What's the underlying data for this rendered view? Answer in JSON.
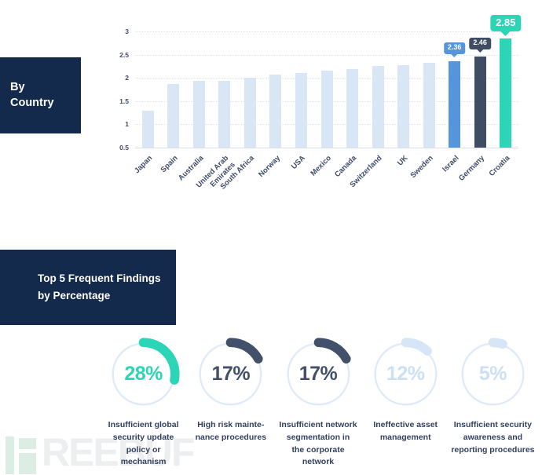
{
  "colors": {
    "dark_navy": "#132A4D",
    "teal": "#2BD5B5",
    "blue": "#5495DB",
    "slate": "#3E4D63",
    "light_bar": "#D9E6F5",
    "light_arc": "#D7E6F7",
    "light_text": "#CBE0F5",
    "ring": "#DEEBFA",
    "axis_text": "#3E4C69",
    "grid": "#DDE6EE"
  },
  "by_country": {
    "title": "By\nCountry"
  },
  "chart_data": {
    "type": "bar",
    "title": "",
    "xlabel": "",
    "ylabel": "",
    "ylim": [
      0.5,
      3
    ],
    "yticks": [
      "0.5",
      "1",
      "1.5",
      "2",
      "2.5",
      "3"
    ],
    "grid": true,
    "categories": [
      "Japan",
      "Spain",
      "Australia",
      "United Arab\nEmirates",
      "South Africa",
      "Norway",
      "USA",
      "Mexico",
      "Canada",
      "Switzerland",
      "UK",
      "Sweden",
      "Israel",
      "Germany",
      "Croatia"
    ],
    "values": [
      1.3,
      1.87,
      1.93,
      1.93,
      2.01,
      2.07,
      2.11,
      2.15,
      2.19,
      2.25,
      2.28,
      2.32,
      2.36,
      2.46,
      2.85
    ],
    "bar_colors": [
      "#D9E6F5",
      "#D9E6F5",
      "#D9E6F5",
      "#D9E6F5",
      "#D9E6F5",
      "#D9E6F5",
      "#D9E6F5",
      "#D9E6F5",
      "#D9E6F5",
      "#D9E6F5",
      "#D9E6F5",
      "#D9E6F5",
      "#5495DB",
      "#3E4D63",
      "#2BD5B5"
    ],
    "badges": [
      {
        "index": 12,
        "label": "2.36",
        "color": "#5495DB",
        "large": false
      },
      {
        "index": 13,
        "label": "2.46",
        "color": "#3E4D63",
        "large": false
      },
      {
        "index": 14,
        "label": "2.85",
        "color": "#2BD5B5",
        "large": true
      }
    ]
  },
  "top5": {
    "title": "Top 5 Frequent Findings\nby Percentage",
    "gauges": [
      {
        "percent": 28,
        "label": "28%",
        "arc_color": "#2CD5B6",
        "text_color": "#2CD5B6",
        "caption": "Insufficient global\nsecurity update\npolicy or\nmechanism"
      },
      {
        "percent": 17,
        "label": "17%",
        "arc_color": "#42506A",
        "text_color": "#42506A",
        "caption": "High risk mainte-\nnance procedures"
      },
      {
        "percent": 17,
        "label": "17%",
        "arc_color": "#42506A",
        "text_color": "#42506A",
        "caption": "Insufficient network\nsegmentation in\nthe corporate\nnetwork"
      },
      {
        "percent": 12,
        "label": "12%",
        "arc_color": "#D7E6F7",
        "text_color": "#CBE0F5",
        "caption": "Ineffective asset\nmanagement"
      },
      {
        "percent": 5,
        "label": "5%",
        "arc_color": "#D7E6F7",
        "text_color": "#CBE0F5",
        "caption": "Insufficient security\nawareness and\nreporting procedures"
      }
    ],
    "ring_color": "#DEEBFA"
  },
  "watermark": {
    "letters": "REEBUF"
  }
}
